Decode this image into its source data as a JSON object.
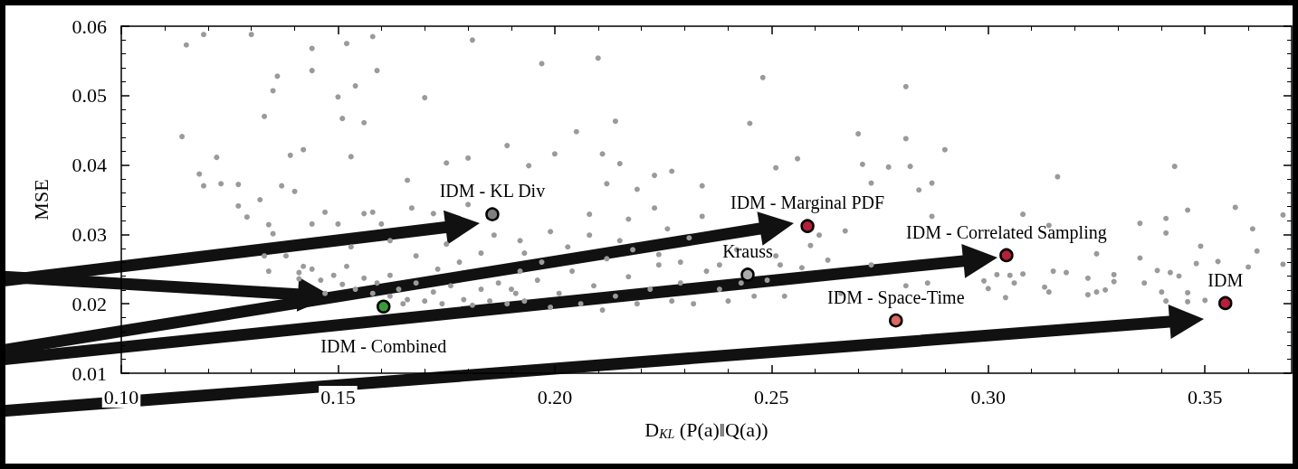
{
  "chart_data": {
    "type": "scatter",
    "xlabel": "D$_{KL}$ (P(a)‖Q(a))",
    "ylabel": "MSE",
    "marker": "circle",
    "xlim": [
      0.1,
      0.37
    ],
    "xticks": [
      {
        "value": 0.1,
        "label": "0.10"
      },
      {
        "value": 0.15,
        "label": "0.15"
      },
      {
        "value": 0.2,
        "label": "0.20"
      },
      {
        "value": 0.25,
        "label": "0.25"
      },
      {
        "value": 0.3,
        "label": "0.30"
      },
      {
        "value": 0.35,
        "label": "0.35"
      }
    ],
    "ylim": [
      0.01,
      0.06
    ],
    "yticks": [
      0.01,
      0.02,
      0.03,
      0.04,
      0.05,
      0.06
    ],
    "series": [
      {
        "color": "#9a9a9a",
        "x": [
          0.115,
          0.119,
          0.13,
          0.144,
          0.152,
          0.158,
          0.181,
          0.136,
          0.135,
          0.144,
          0.159,
          0.15,
          0.17,
          0.154,
          0.133,
          0.151,
          0.156,
          0.114,
          0.122,
          0.139,
          0.142,
          0.153,
          0.118,
          0.119,
          0.123,
          0.127,
          0.137,
          0.127,
          0.129,
          0.132,
          0.14,
          0.166,
          0.175,
          0.189,
          0.18,
          0.197,
          0.21,
          0.248,
          0.281,
          0.214,
          0.205,
          0.245,
          0.27,
          0.281,
          0.2,
          0.211,
          0.215,
          0.227,
          0.223,
          0.256,
          0.251,
          0.271,
          0.277,
          0.234,
          0.273,
          0.287,
          0.194,
          0.212,
          0.219,
          0.284,
          0.208,
          0.217,
          0.223,
          0.226,
          0.234,
          0.267,
          0.261,
          0.287,
          0.263,
          0.273,
          0.281,
          0.266,
          0.253,
          0.257,
          0.259,
          0.251,
          0.286,
          0.29,
          0.282,
          0.316,
          0.343,
          0.308,
          0.346,
          0.357,
          0.368,
          0.341,
          0.335,
          0.361,
          0.341,
          0.314,
          0.325,
          0.335,
          0.349,
          0.362,
          0.368,
          0.348,
          0.353,
          0.36,
          0.339,
          0.342,
          0.344,
          0.315,
          0.318,
          0.308,
          0.305,
          0.302,
          0.323,
          0.329,
          0.329,
          0.336,
          0.299,
          0.306,
          0.313,
          0.314,
          0.323,
          0.325,
          0.327,
          0.34,
          0.346,
          0.341,
          0.346,
          0.35,
          0.304,
          0.3,
          0.134,
          0.133,
          0.135,
          0.134,
          0.138,
          0.141,
          0.142,
          0.144,
          0.147,
          0.15,
          0.153,
          0.156,
          0.158,
          0.16,
          0.162,
          0.167,
          0.172,
          0.175,
          0.18,
          0.186,
          0.192,
          0.183,
          0.178,
          0.168,
          0.141,
          0.144,
          0.146,
          0.149,
          0.151,
          0.152,
          0.154,
          0.156,
          0.158,
          0.159,
          0.162,
          0.164,
          0.166,
          0.168,
          0.17,
          0.172,
          0.174,
          0.176,
          0.179,
          0.181,
          0.183,
          0.185,
          0.187,
          0.189,
          0.191,
          0.192,
          0.165,
          0.173,
          0.162,
          0.147,
          0.19,
          0.193,
          0.196,
          0.199,
          0.201,
          0.204,
          0.206,
          0.209,
          0.211,
          0.214,
          0.217,
          0.219,
          0.222,
          0.224,
          0.227,
          0.229,
          0.232,
          0.235,
          0.238,
          0.24,
          0.243,
          0.246,
          0.249,
          0.224,
          0.212,
          0.218,
          0.229,
          0.238,
          0.203,
          0.197,
          0.193,
          0.208,
          0.215,
          0.199,
          0.231,
          0.242,
          0.252
        ],
        "values": [
          0.0573,
          0.0588,
          0.0588,
          0.0568,
          0.0575,
          0.0585,
          0.058,
          0.0528,
          0.0507,
          0.0536,
          0.0536,
          0.0498,
          0.0497,
          0.0514,
          0.047,
          0.0467,
          0.0461,
          0.0441,
          0.0411,
          0.0414,
          0.0422,
          0.0412,
          0.0387,
          0.037,
          0.0373,
          0.0372,
          0.037,
          0.0341,
          0.0325,
          0.035,
          0.0362,
          0.0378,
          0.0403,
          0.0428,
          0.041,
          0.0546,
          0.0554,
          0.0526,
          0.0513,
          0.0463,
          0.0448,
          0.046,
          0.0445,
          0.0438,
          0.0416,
          0.0416,
          0.0402,
          0.0391,
          0.0385,
          0.0409,
          0.0396,
          0.0401,
          0.0397,
          0.037,
          0.0374,
          0.0374,
          0.0399,
          0.0373,
          0.0365,
          0.0364,
          0.0329,
          0.0322,
          0.0338,
          0.0308,
          0.0326,
          0.0305,
          0.0299,
          0.0326,
          0.0263,
          0.0256,
          0.0226,
          0.0215,
          0.0211,
          0.0252,
          0.0284,
          0.0269,
          0.023,
          0.0422,
          0.0398,
          0.0383,
          0.0398,
          0.0329,
          0.0335,
          0.0339,
          0.0328,
          0.0323,
          0.0316,
          0.0308,
          0.0302,
          0.0313,
          0.0272,
          0.0266,
          0.0283,
          0.0276,
          0.0257,
          0.0258,
          0.0261,
          0.0253,
          0.0248,
          0.0245,
          0.024,
          0.0247,
          0.0245,
          0.0243,
          0.0241,
          0.0242,
          0.0237,
          0.0232,
          0.0242,
          0.023,
          0.0233,
          0.023,
          0.0224,
          0.0217,
          0.0213,
          0.0217,
          0.022,
          0.0217,
          0.0216,
          0.0204,
          0.0203,
          0.0205,
          0.0209,
          0.0222,
          0.0247,
          0.0269,
          0.0301,
          0.0314,
          0.0269,
          0.0245,
          0.0254,
          0.0315,
          0.0332,
          0.0315,
          0.0282,
          0.033,
          0.0332,
          0.0315,
          0.0291,
          0.0338,
          0.033,
          0.0286,
          0.0343,
          0.0299,
          0.0291,
          0.0273,
          0.026,
          0.0269,
          0.0236,
          0.025,
          0.0234,
          0.0241,
          0.0228,
          0.0254,
          0.0221,
          0.0237,
          0.0215,
          0.023,
          0.0211,
          0.0221,
          0.0206,
          0.023,
          0.0204,
          0.0217,
          0.02,
          0.0226,
          0.0206,
          0.0198,
          0.0221,
          0.0204,
          0.023,
          0.02,
          0.0215,
          0.0247,
          0.02,
          0.025,
          0.0241,
          0.0215,
          0.0221,
          0.0204,
          0.0234,
          0.0195,
          0.0215,
          0.0247,
          0.02,
          0.0226,
          0.0191,
          0.0211,
          0.0239,
          0.02,
          0.0221,
          0.0256,
          0.0204,
          0.023,
          0.02,
          0.0247,
          0.0221,
          0.0204,
          0.023,
          0.0211,
          0.0234,
          0.0271,
          0.0265,
          0.0278,
          0.026,
          0.0256,
          0.0282,
          0.026,
          0.0273,
          0.0299,
          0.0291,
          0.0304,
          0.0295,
          0.0278,
          0.0256
        ]
      },
      {
        "name": "IDM - KL Div",
        "color": "#808080",
        "x": [
          0.1856
        ],
        "values": [
          0.0329
        ]
      },
      {
        "name": "IDM - Marginal PDF",
        "color": "#b5213a",
        "x": [
          0.2583
        ],
        "values": [
          0.0312
        ]
      },
      {
        "name": "IDM - Correlated Sampling",
        "color": "#b5213a",
        "x": [
          0.3042
        ],
        "values": [
          0.027
        ]
      },
      {
        "name": "Krauss",
        "color": "#ababab",
        "x": [
          0.2445
        ],
        "values": [
          0.0242
        ]
      },
      {
        "name": "IDM - Space-Time",
        "color": "#d9685f",
        "x": [
          0.2787
        ],
        "values": [
          0.0176
        ]
      },
      {
        "name": "IDM",
        "color": "#b5213a",
        "x": [
          0.3547
        ],
        "values": [
          0.0201
        ]
      },
      {
        "name": "IDM - Combined",
        "color": "#3a9a3a",
        "x": [
          0.1605
        ],
        "values": [
          0.0196
        ]
      }
    ]
  }
}
